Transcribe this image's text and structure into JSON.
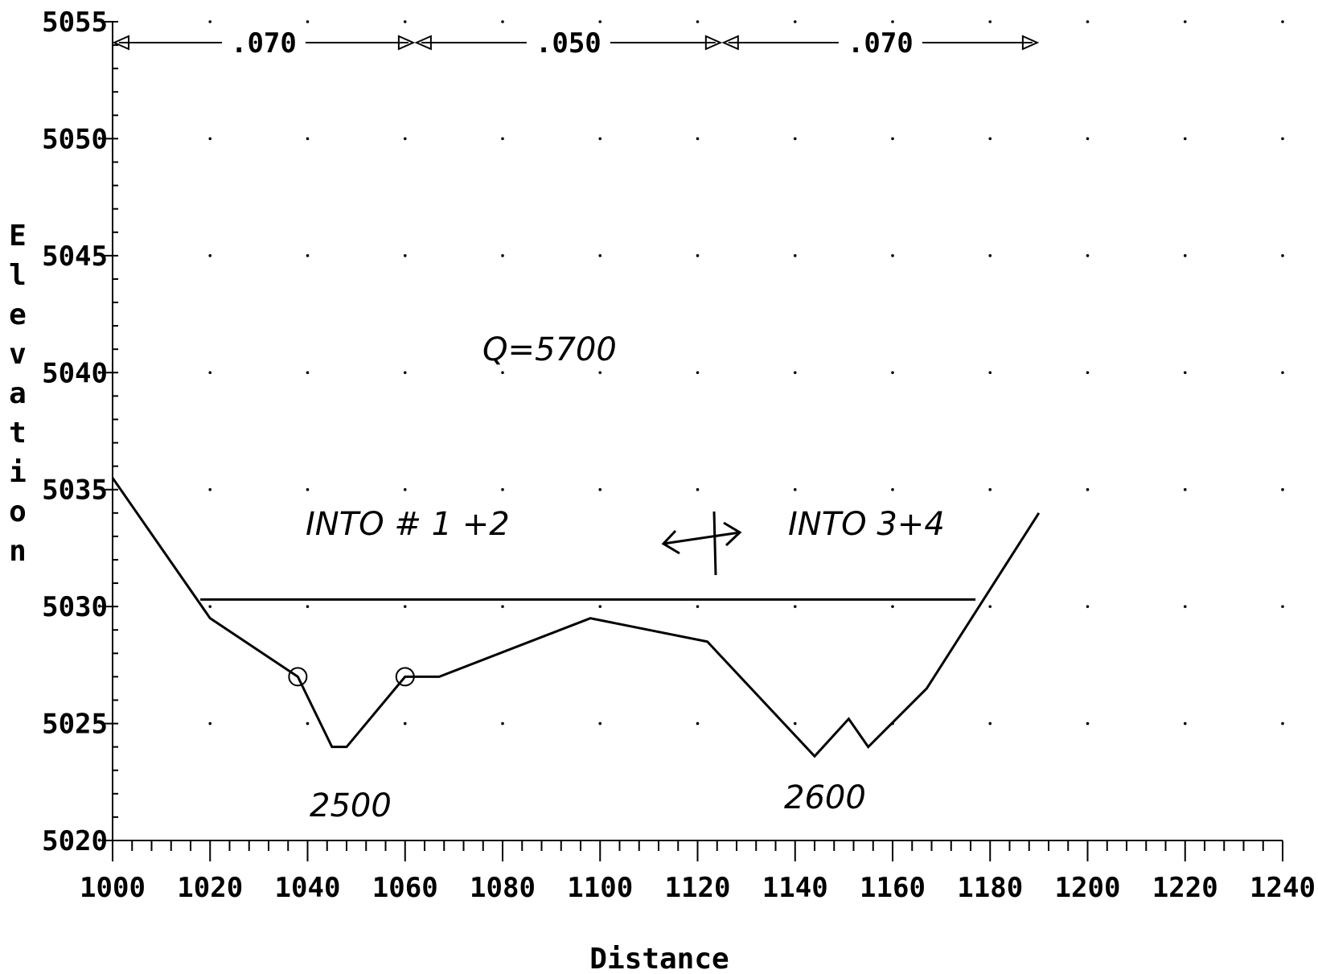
{
  "chart_data": {
    "type": "line",
    "xlabel": "Distance",
    "ylabel": "Elevation",
    "xlim": [
      1000,
      1240
    ],
    "ylim": [
      5020,
      5055
    ],
    "x_ticks": [
      "1000",
      "1020",
      "1040",
      "1060",
      "1080",
      "1100",
      "1120",
      "1140",
      "1160",
      "1180",
      "1200",
      "1220",
      "1240"
    ],
    "y_ticks": [
      "5020",
      "5025",
      "5030",
      "5035",
      "5040",
      "5045",
      "5050",
      "5055"
    ],
    "grid": "dots",
    "series": [
      {
        "x": [
          1000,
          1020,
          1038,
          1045,
          1048,
          1060,
          1067,
          1098,
          1122,
          1144,
          1151,
          1155,
          1167,
          1190
        ],
        "y": [
          5035.5,
          5029.5,
          5027.0,
          5024.0,
          5024.0,
          5027.0,
          5027.0,
          5029.5,
          5028.5,
          5023.6,
          5025.2,
          5024.0,
          5026.5,
          5034.0
        ]
      },
      {
        "x": [
          1018,
          1177
        ],
        "y": [
          5030.3,
          5030.3
        ]
      }
    ],
    "bank_stations": [
      1038,
      1060
    ],
    "n_values": [
      {
        "label": ".070",
        "from": 1000,
        "to": 1062
      },
      {
        "label": ".050",
        "from": 1062,
        "to": 1125
      },
      {
        "label": ".070",
        "from": 1125,
        "to": 1190
      }
    ],
    "annotations": [
      "Q=5700",
      "INTO # 1 +2",
      "INTO 3+4",
      "2500",
      "2600"
    ]
  }
}
